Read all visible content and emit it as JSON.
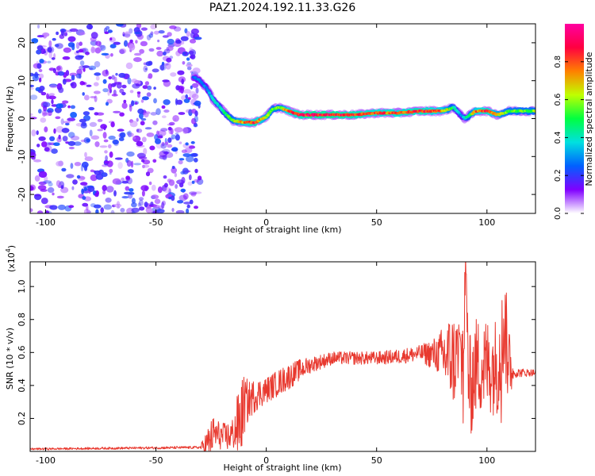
{
  "title": "PAZ1.2024.192.11.33.G26",
  "chart_data": [
    {
      "type": "heatmap",
      "xlabel": "Height of straight line (km)",
      "ylabel": "Frequency (Hz)",
      "xlim": [
        -107,
        122
      ],
      "ylim": [
        -25,
        25
      ],
      "x_ticks": [
        -100,
        -50,
        0,
        50,
        100
      ],
      "y_ticks": [
        -20,
        -10,
        0,
        10,
        20
      ],
      "colorbar": {
        "label": "Normalized spectral amplitude",
        "range": [
          0,
          1
        ],
        "ticks": [
          0.0,
          0.2,
          0.4,
          0.6,
          0.8
        ],
        "colors": [
          "#ffffff",
          "#8000ff",
          "#0060ff",
          "#00e0e0",
          "#00ff40",
          "#c0ff00",
          "#ff8000",
          "#ff0040",
          "#ff00a0"
        ]
      },
      "noise_region_x": [
        -107,
        -30
      ],
      "ridge": {
        "x": [
          -33,
          -30,
          -27,
          -24,
          -21,
          -18,
          -15,
          -10,
          -5,
          0,
          3,
          6,
          10,
          15,
          20,
          30,
          40,
          50,
          60,
          70,
          80,
          85,
          88,
          90,
          95,
          100,
          105,
          110,
          115,
          122
        ],
        "freq": [
          11,
          10,
          8,
          5,
          3,
          1,
          -0.5,
          -1,
          -1,
          0.5,
          2.5,
          3,
          2,
          1,
          1,
          1,
          1,
          1.5,
          1.5,
          2,
          2,
          3,
          1,
          0,
          2,
          2,
          1,
          2,
          2,
          2
        ],
        "amplitude": [
          0.25,
          0.3,
          0.3,
          0.4,
          0.4,
          0.5,
          0.6,
          0.8,
          0.9,
          0.7,
          0.6,
          0.6,
          0.85,
          0.9,
          0.95,
          0.95,
          0.9,
          0.85,
          0.85,
          0.9,
          0.8,
          0.5,
          0.3,
          0.4,
          0.8,
          0.9,
          0.7,
          0.6,
          0.6,
          0.6
        ]
      }
    },
    {
      "type": "line",
      "xlabel": "Height of straight line (km)",
      "ylabel": "SNR (10 * v/v)",
      "y_scale_label": "(x10",
      "y_scale_exp": "4",
      "y_scale_close": ")",
      "xlim": [
        -107,
        122
      ],
      "ylim": [
        0,
        1.15
      ],
      "x_ticks": [
        -100,
        -50,
        0,
        50,
        100
      ],
      "y_ticks": [
        0.2,
        0.4,
        0.6,
        0.8,
        1.0
      ],
      "color": "#e8392f",
      "envelope": {
        "x": [
          -107,
          -30,
          -26,
          -24,
          -20,
          -17,
          -15,
          -12,
          -10,
          -8,
          -5,
          0,
          5,
          10,
          15,
          20,
          25,
          30,
          40,
          50,
          60,
          70,
          78,
          82,
          86,
          89,
          90,
          92,
          95,
          100,
          105,
          108,
          110,
          112,
          122
        ],
        "y": [
          0.015,
          0.025,
          0.06,
          0.12,
          0.1,
          0.1,
          0.12,
          0.2,
          0.3,
          0.32,
          0.35,
          0.38,
          0.42,
          0.46,
          0.5,
          0.53,
          0.55,
          0.57,
          0.57,
          0.57,
          0.58,
          0.6,
          0.6,
          0.6,
          0.58,
          0.6,
          1.12,
          0.4,
          0.55,
          0.55,
          0.55,
          0.8,
          0.55,
          0.48,
          0.48
        ]
      },
      "noise_amplitude": {
        "x": [
          -107,
          -30,
          -26,
          -20,
          -15,
          -12,
          -8,
          -5,
          0,
          10,
          20,
          30,
          50,
          70,
          78,
          82,
          86,
          90,
          95,
          100,
          105,
          110,
          112,
          122
        ],
        "a": [
          0.006,
          0.008,
          0.12,
          0.08,
          0.1,
          0.25,
          0.12,
          0.1,
          0.08,
          0.08,
          0.05,
          0.04,
          0.04,
          0.05,
          0.12,
          0.25,
          0.3,
          0.35,
          0.3,
          0.3,
          0.3,
          0.3,
          0.03,
          0.02
        ]
      }
    }
  ]
}
